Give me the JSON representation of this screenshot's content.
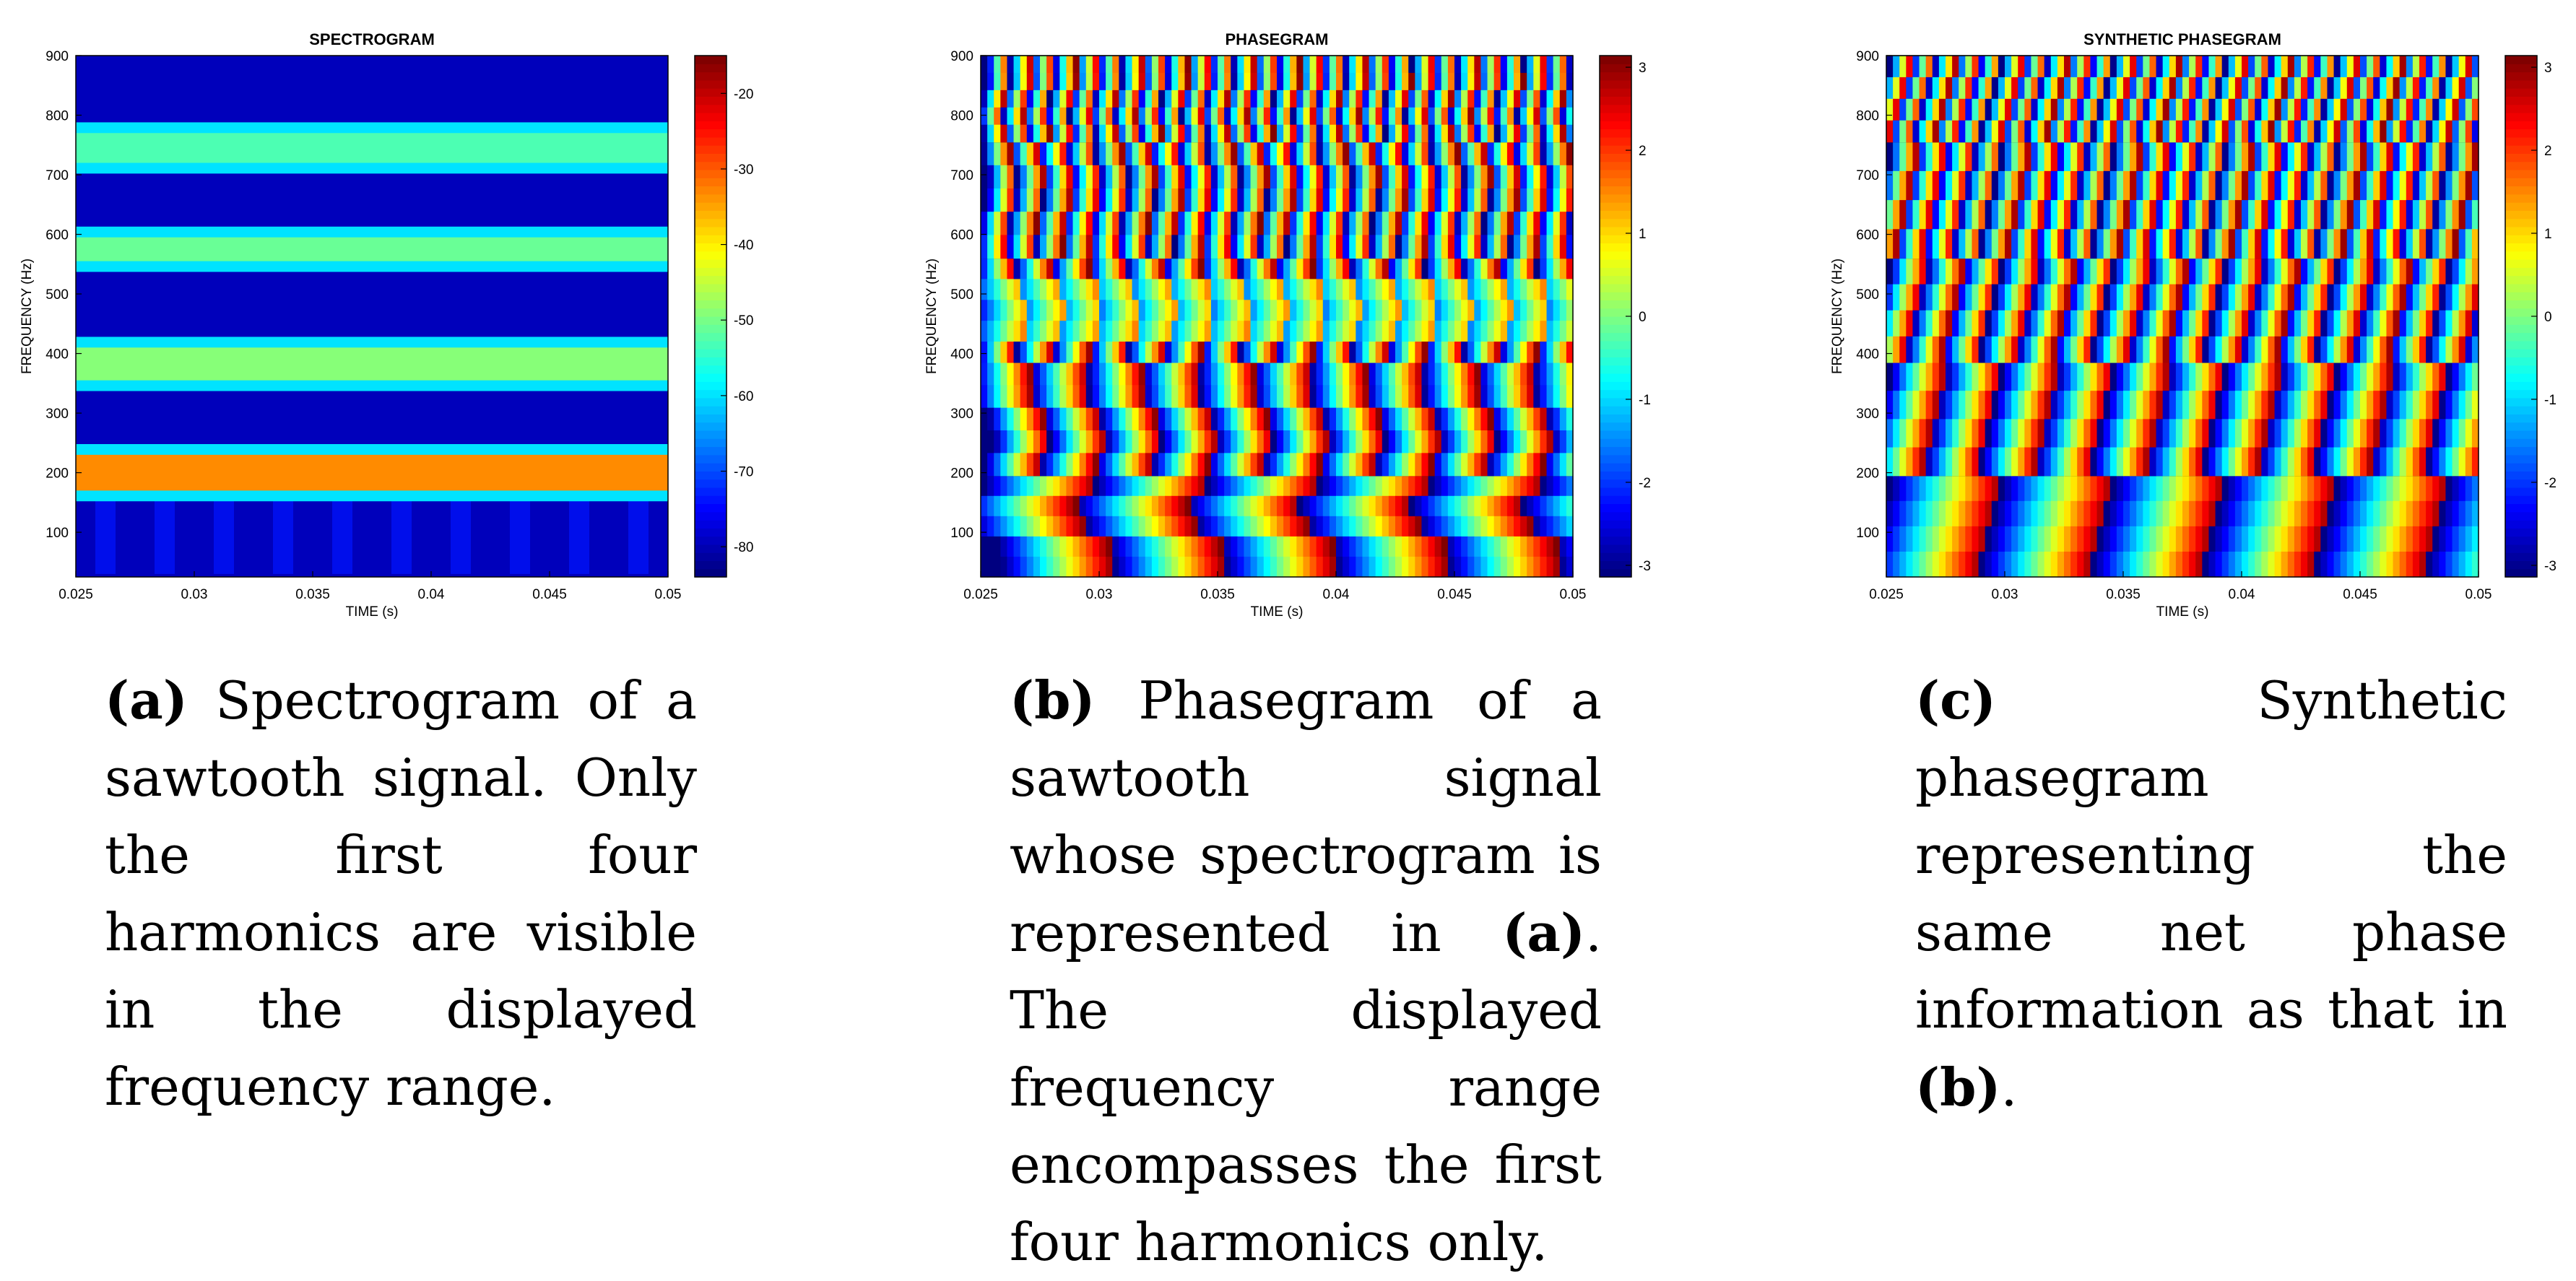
{
  "panels": [
    {
      "id": "a",
      "title": "SPECTROGRAM",
      "xlabel": "TIME (s)",
      "ylabel": "FREQUENCY (Hz)",
      "caption_tag": "(a)",
      "caption_text": " Spectrogram of a sawtooth signal. Only the first four harmonics are visible in the displayed frequency range."
    },
    {
      "id": "b",
      "title": "PHASEGRAM",
      "xlabel": "TIME (s)",
      "ylabel": "FREQUENCY (Hz)",
      "caption_tag": "(b)",
      "caption_text_1": " Phasegram of a sawtooth signal whose spectrogram is represented in ",
      "caption_ref": "(a)",
      "caption_text_2": ". The displayed frequency range encompasses the first four harmonics only."
    },
    {
      "id": "c",
      "title": "SYNTHETIC PHASEGRAM",
      "xlabel": "TIME (s)",
      "ylabel": "FREQUENCY (Hz)",
      "caption_tag": "(c)",
      "caption_text_1": " Synthetic phasegram representing the same net phase information as that in ",
      "caption_ref": "(b)",
      "caption_text_2": "."
    }
  ],
  "chart_data": [
    {
      "type": "heatmap",
      "title": "SPECTROGRAM",
      "xlabel": "TIME (s)",
      "ylabel": "FREQUENCY (Hz)",
      "xlim": [
        0.025,
        0.05
      ],
      "ylim": [
        25,
        900
      ],
      "xticks": [
        "0.025",
        "0.03",
        "0.035",
        "0.04",
        "0.045",
        "0.05"
      ],
      "yticks": [
        "100",
        "200",
        "300",
        "400",
        "500",
        "600",
        "700",
        "800",
        "900"
      ],
      "colorbar": {
        "range": [
          -84,
          -15
        ],
        "ticks": [
          "-20",
          "-30",
          "-40",
          "-50",
          "-60",
          "-70",
          "-80"
        ]
      },
      "bands": [
        {
          "range_hz": [
            170,
            230
          ],
          "level_db": -33
        },
        {
          "range_hz": [
            355,
            410
          ],
          "level_db": -49
        },
        {
          "range_hz": [
            555,
            595
          ],
          "level_db": -51
        },
        {
          "range_hz": [
            720,
            770
          ],
          "level_db": -53
        }
      ],
      "background_db": -80,
      "colormap": "jet"
    },
    {
      "type": "heatmap",
      "title": "PHASEGRAM",
      "xlabel": "TIME (s)",
      "ylabel": "FREQUENCY (Hz)",
      "xlim": [
        0.025,
        0.05
      ],
      "ylim": [
        25,
        900
      ],
      "xticks": [
        "0.025",
        "0.03",
        "0.035",
        "0.04",
        "0.045",
        "0.05"
      ],
      "yticks": [
        "100",
        "200",
        "300",
        "400",
        "500",
        "600",
        "700",
        "800",
        "900"
      ],
      "colorbar": {
        "range": [
          -3.14,
          3.14
        ],
        "ticks": [
          "3",
          "2",
          "1",
          "0",
          "-1",
          "-2",
          "-3"
        ]
      },
      "harmonic_bands_hz": [
        [
          25,
          195
        ],
        [
          195,
          385
        ],
        [
          385,
          560
        ],
        [
          560,
          755
        ],
        [
          755,
          900
        ]
      ],
      "colormap": "jet"
    },
    {
      "type": "heatmap",
      "title": "SYNTHETIC PHASEGRAM",
      "xlabel": "TIME (s)",
      "ylabel": "FREQUENCY (Hz)",
      "xlim": [
        0.025,
        0.05
      ],
      "ylim": [
        25,
        900
      ],
      "xticks": [
        "0.025",
        "0.03",
        "0.035",
        "0.04",
        "0.045",
        "0.05"
      ],
      "yticks": [
        "100",
        "200",
        "300",
        "400",
        "500",
        "600",
        "700",
        "800",
        "900"
      ],
      "colorbar": {
        "range": [
          -3.14,
          3.14
        ],
        "ticks": [
          "3",
          "2",
          "1",
          "0",
          "-1",
          "-2",
          "-3"
        ]
      },
      "harmonic_bands_hz": [
        [
          25,
          195
        ],
        [
          195,
          385
        ],
        [
          385,
          560
        ],
        [
          560,
          755
        ],
        [
          755,
          900
        ]
      ],
      "colormap": "jet"
    }
  ]
}
